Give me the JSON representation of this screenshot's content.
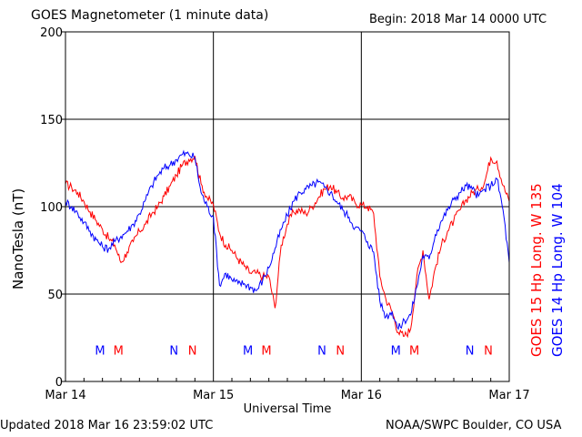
{
  "header": {
    "title": "GOES Magnetometer (1 minute data)",
    "begin": "Begin:  2018 Mar 14 0000 UTC"
  },
  "footer": {
    "updated": "Updated 2018 Mar 16 23:59:02 UTC",
    "credit": "NOAA/SWPC Boulder, CO USA"
  },
  "chart_data": {
    "type": "line",
    "title": "GOES Magnetometer (1 minute data)",
    "xlabel": "Universal Time",
    "ylabel": "NanoTesla (nT)",
    "x_unit": "hours since 2018 Mar 14 0000 UTC",
    "xlim": [
      0,
      72
    ],
    "ylim": [
      0,
      200
    ],
    "y_ticks": [
      0,
      50,
      100,
      150,
      200
    ],
    "x_tick_labels": [
      {
        "x": 0,
        "label": "Mar 14"
      },
      {
        "x": 24,
        "label": "Mar 15"
      },
      {
        "x": 48,
        "label": "Mar 16"
      },
      {
        "x": 72,
        "label": "Mar 17"
      }
    ],
    "grid": true,
    "markers": {
      "y": 18,
      "items": [
        {
          "x": 5.6,
          "label": "M",
          "series": 1
        },
        {
          "x": 8.6,
          "label": "M",
          "series": 0
        },
        {
          "x": 17.6,
          "label": "N",
          "series": 1
        },
        {
          "x": 20.6,
          "label": "N",
          "series": 0
        },
        {
          "x": 29.6,
          "label": "M",
          "series": 1
        },
        {
          "x": 32.6,
          "label": "M",
          "series": 0
        },
        {
          "x": 41.6,
          "label": "N",
          "series": 1
        },
        {
          "x": 44.6,
          "label": "N",
          "series": 0
        },
        {
          "x": 53.6,
          "label": "M",
          "series": 1
        },
        {
          "x": 56.6,
          "label": "M",
          "series": 0
        },
        {
          "x": 65.6,
          "label": "N",
          "series": 1
        },
        {
          "x": 68.6,
          "label": "N",
          "series": 0
        }
      ]
    },
    "series": [
      {
        "name": "GOES 15 Hp  Long. W 135",
        "color": "#ff0000",
        "x": [
          0,
          1,
          2,
          3,
          4,
          5,
          6,
          7,
          8,
          9,
          10,
          11,
          12,
          13,
          14,
          15,
          16,
          17,
          18,
          19,
          20,
          21,
          22,
          23,
          24,
          25,
          26,
          27,
          28,
          29,
          30,
          31,
          32,
          33,
          34,
          35,
          36,
          37,
          38,
          39,
          40,
          41,
          42,
          43,
          44,
          45,
          46,
          47,
          48,
          49,
          50,
          51,
          52,
          53,
          54,
          55,
          56,
          57,
          58,
          59,
          60,
          61,
          62,
          63,
          64,
          65,
          66,
          67,
          68,
          69,
          70,
          71,
          72
        ],
        "y": [
          113,
          111,
          108,
          103,
          97,
          92,
          87,
          82,
          78,
          68,
          74,
          80,
          86,
          90,
          96,
          100,
          106,
          112,
          118,
          124,
          127,
          129,
          113,
          105,
          101,
          85,
          78,
          75,
          70,
          66,
          62,
          62,
          60,
          60,
          42,
          78,
          90,
          97,
          98,
          96,
          100,
          105,
          110,
          112,
          108,
          105,
          106,
          102,
          101,
          100,
          96,
          60,
          47,
          40,
          28,
          26,
          30,
          60,
          75,
          47,
          65,
          78,
          86,
          92,
          98,
          104,
          108,
          110,
          114,
          128,
          126,
          112,
          103
        ]
      },
      {
        "name": "GOES 14 Hp  Long. W 104",
        "color": "#0000ff",
        "x": [
          0,
          1,
          2,
          3,
          4,
          5,
          6,
          7,
          8,
          9,
          10,
          11,
          12,
          13,
          14,
          15,
          16,
          17,
          18,
          19,
          20,
          21,
          22,
          23,
          24,
          25,
          26,
          27,
          28,
          29,
          30,
          31,
          32,
          33,
          34,
          35,
          36,
          37,
          38,
          39,
          40,
          41,
          42,
          43,
          44,
          45,
          46,
          47,
          48,
          49,
          50,
          51,
          52,
          53,
          54,
          55,
          56,
          57,
          58,
          59,
          60,
          61,
          62,
          63,
          64,
          65,
          66,
          67,
          68,
          69,
          70,
          71,
          72
        ],
        "y": [
          103,
          100,
          96,
          91,
          86,
          81,
          77,
          76,
          80,
          83,
          86,
          90,
          96,
          104,
          112,
          118,
          122,
          124,
          127,
          130,
          130,
          128,
          108,
          100,
          94,
          55,
          62,
          58,
          56,
          56,
          54,
          52,
          58,
          65,
          76,
          87,
          95,
          103,
          108,
          110,
          112,
          114,
          111,
          108,
          103,
          98,
          94,
          88,
          86,
          80,
          74,
          46,
          37,
          40,
          30,
          35,
          38,
          54,
          72,
          70,
          84,
          92,
          98,
          104,
          108,
          112,
          110,
          106,
          110,
          112,
          116,
          98,
          68
        ]
      }
    ]
  }
}
